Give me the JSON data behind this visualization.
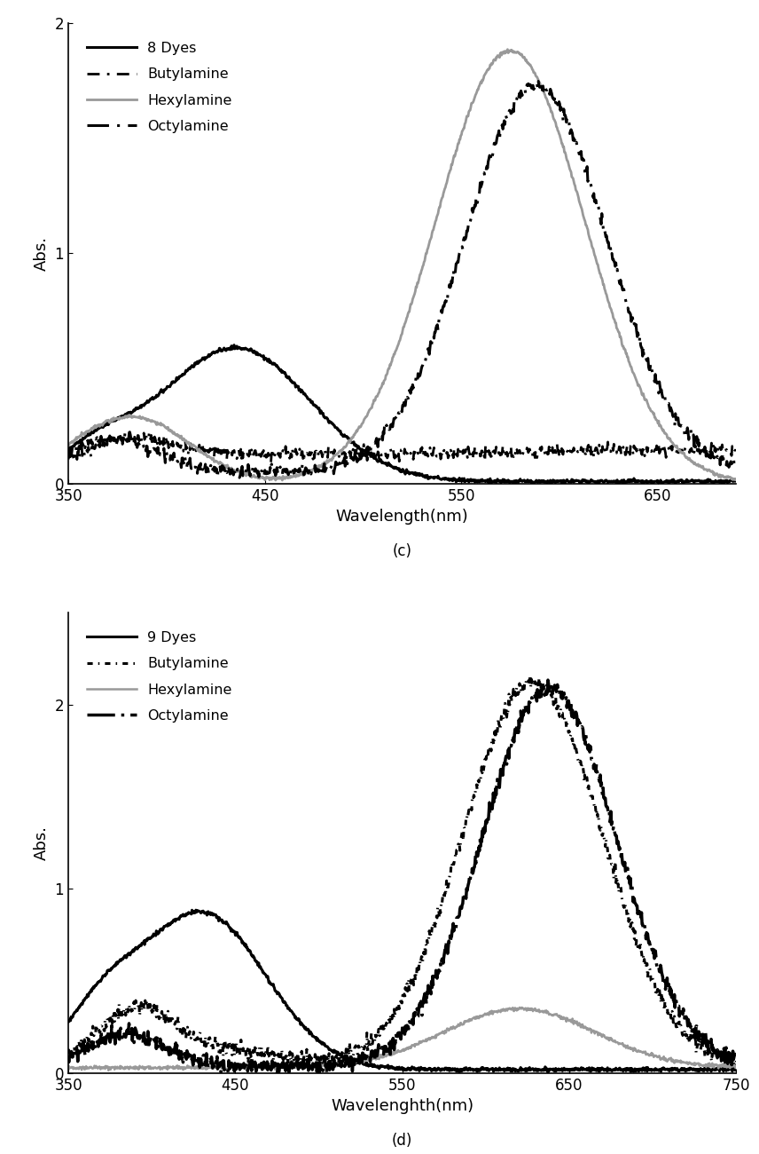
{
  "panel_c": {
    "title": "(c)",
    "xlabel": "Wavelength(nm)",
    "ylabel": "Abs.",
    "xlim": [
      350,
      690
    ],
    "ylim": [
      0,
      2.0
    ],
    "yticks": [
      0,
      1,
      2
    ],
    "xticks": [
      350,
      450,
      550,
      650
    ],
    "series": [
      {
        "label": "8 Dyes",
        "color": "#000000",
        "linestyle": "solid",
        "linewidth": 2.2
      },
      {
        "label": "Butylamine",
        "color": "#000000",
        "linestyle": "dashed",
        "linewidth": 2.0
      },
      {
        "label": "Hexylamine",
        "color": "#999999",
        "linestyle": "solid",
        "linewidth": 2.0
      },
      {
        "label": "Octylamine",
        "color": "#000000",
        "linestyle": "dashdot",
        "linewidth": 2.2
      }
    ]
  },
  "panel_d": {
    "title": "(d)",
    "xlabel": "Wavelenghth(nm)",
    "ylabel": "Abs.",
    "xlim": [
      350,
      750
    ],
    "ylim": [
      0,
      2.5
    ],
    "yticks": [
      0,
      1,
      2
    ],
    "xticks": [
      350,
      450,
      550,
      650,
      750
    ],
    "series": [
      {
        "label": "9 Dyes",
        "color": "#000000",
        "linestyle": "solid",
        "linewidth": 2.2
      },
      {
        "label": "Butylamine",
        "color": "#000000",
        "linestyle": "dotted_dense",
        "linewidth": 2.2
      },
      {
        "label": "Hexylamine",
        "color": "#999999",
        "linestyle": "solid",
        "linewidth": 1.8
      },
      {
        "label": "Octylamine",
        "color": "#000000",
        "linestyle": "dashdot",
        "linewidth": 2.5
      }
    ]
  }
}
